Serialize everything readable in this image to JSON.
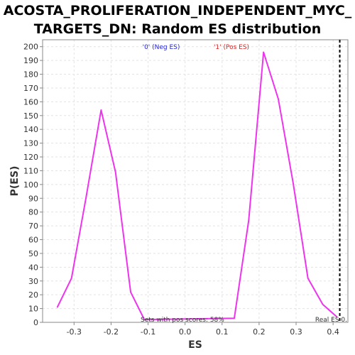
{
  "chart_data": {
    "type": "line",
    "title_lines": [
      "ACOSTA_PROLIFERATION_INDEPENDENT_MYC_",
      "TARGETS_DN: Random ES distribution"
    ],
    "xlabel": "ES",
    "ylabel": "P(ES)",
    "xlim": [
      -0.385,
      0.44
    ],
    "ylim": [
      0,
      205
    ],
    "xticks": [
      "-0.3",
      "-0.2",
      "-0.1",
      "0.0",
      "0.1",
      "0.2",
      "0.3",
      "0.4"
    ],
    "xtick_values": [
      -0.3,
      -0.2,
      -0.1,
      0.0,
      0.1,
      0.2,
      0.3,
      0.4
    ],
    "yticks": [
      "0",
      "10",
      "20",
      "30",
      "40",
      "50",
      "60",
      "70",
      "80",
      "90",
      "100",
      "110",
      "120",
      "130",
      "140",
      "150",
      "160",
      "170",
      "180",
      "190",
      "200"
    ],
    "ytick_values": [
      0,
      10,
      20,
      30,
      40,
      50,
      60,
      70,
      80,
      90,
      100,
      110,
      120,
      130,
      140,
      150,
      160,
      170,
      180,
      190,
      200
    ],
    "grid": true,
    "series": [
      {
        "color": "#ee33ee",
        "x": [
          -0.345,
          -0.307,
          -0.268,
          -0.227,
          -0.188,
          -0.147,
          -0.11,
          0.133,
          0.172,
          0.212,
          0.252,
          0.292,
          0.332,
          0.372,
          0.41
        ],
        "y": [
          11,
          32,
          90,
          154,
          109,
          22,
          2,
          3,
          74,
          196,
          162,
          101,
          32,
          13,
          4
        ]
      }
    ],
    "legend": [
      {
        "label": "'0' (Neg ES)",
        "color": "#2222dd"
      },
      {
        "label": "'1' (Pos ES)",
        "color": "#dd2222"
      }
    ],
    "annotations": {
      "pos_scores": "Sets with pos scores: 58%",
      "real_es_label": "Real ES 0.",
      "real_es_value": 0.418
    }
  }
}
